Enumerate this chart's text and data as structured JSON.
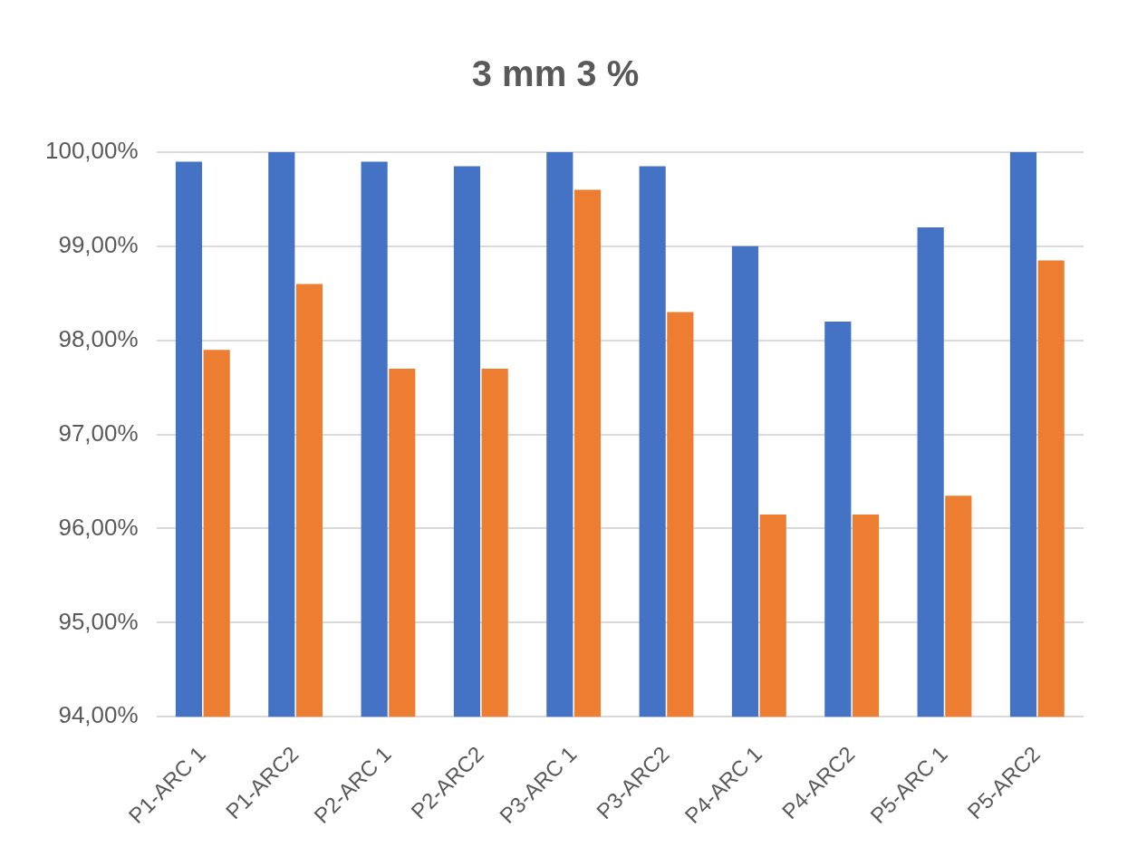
{
  "chart_data": {
    "type": "bar",
    "title": "3 mm 3 %",
    "categories": [
      "P1-ARC 1",
      "P1-ARC2",
      "P2-ARC 1",
      "P2-ARC2",
      "P3-ARC 1",
      "P3-ARC2",
      "P4-ARC 1",
      "P4-ARC2",
      "P5-ARC 1",
      "P5-ARC2"
    ],
    "series": [
      {
        "color": "#4472c4",
        "values": [
          99.9,
          100,
          99.9,
          99.85,
          100,
          99.85,
          99.0,
          98.2,
          99.2,
          100
        ]
      },
      {
        "color": "#ed7d31",
        "values": [
          97.9,
          98.6,
          97.7,
          97.7,
          99.6,
          98.3,
          96.15,
          96.15,
          96.35,
          98.85
        ]
      }
    ],
    "ylim": [
      94,
      100
    ],
    "yticks": [
      {
        "value": 94,
        "label": "94,00%"
      },
      {
        "value": 95,
        "label": "95,00%"
      },
      {
        "value": 96,
        "label": "96,00%"
      },
      {
        "value": 97,
        "label": "97,00%"
      },
      {
        "value": 98,
        "label": "98,00%"
      },
      {
        "value": 99,
        "label": "99,00%"
      },
      {
        "value": 100,
        "label": "100,00%"
      }
    ],
    "grid": "y"
  }
}
